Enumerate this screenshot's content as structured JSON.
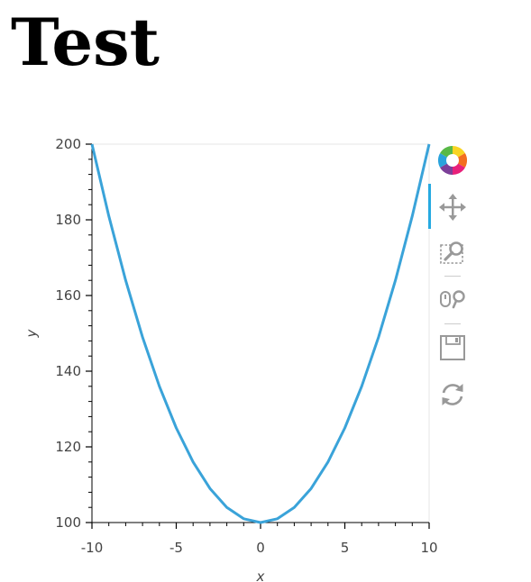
{
  "page": {
    "title": "Test"
  },
  "toolbar": {
    "tools": [
      {
        "icon": "bokeh-logo-icon",
        "active": false
      },
      {
        "icon": "pan-icon",
        "active": true
      },
      {
        "icon": "box-zoom-icon",
        "active": false
      },
      {
        "icon": "wheel-zoom-icon",
        "active": false
      },
      {
        "icon": "save-icon",
        "active": false
      },
      {
        "icon": "reset-icon",
        "active": false
      }
    ]
  },
  "chart_data": {
    "type": "line",
    "xlabel": "x",
    "ylabel": "y",
    "xlim": [
      -10,
      10
    ],
    "ylim": [
      100,
      200
    ],
    "x_ticks": [
      -10,
      -5,
      0,
      5,
      10
    ],
    "y_ticks": [
      100,
      120,
      140,
      160,
      180,
      200
    ],
    "x": [
      -10,
      -9,
      -8,
      -7,
      -6,
      -5,
      -4,
      -3,
      -2,
      -1,
      0,
      1,
      2,
      3,
      4,
      5,
      6,
      7,
      8,
      9,
      10
    ],
    "y": [
      200,
      181,
      164,
      149,
      136,
      125,
      116,
      109,
      104,
      101,
      100,
      101,
      104,
      109,
      116,
      125,
      136,
      149,
      164,
      181,
      200
    ],
    "line_color": "#3aa3d9",
    "grid": false
  }
}
